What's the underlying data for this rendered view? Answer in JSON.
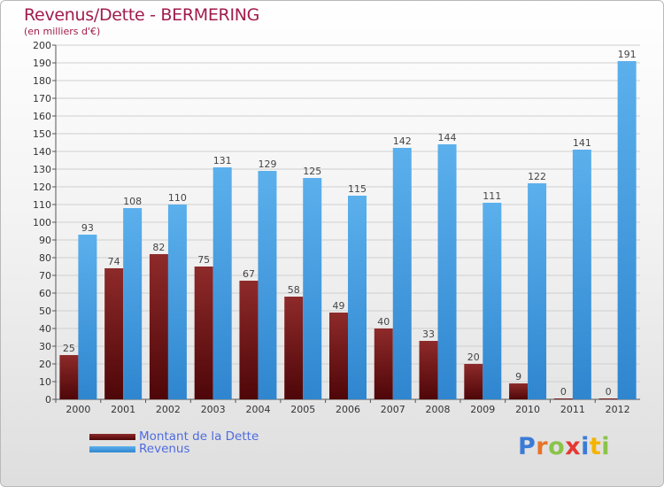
{
  "chart_data": {
    "type": "bar",
    "title": "Revenus/Dette - BERMERING",
    "subtitle": "(en milliers d'€)",
    "categories": [
      "2000",
      "2001",
      "2002",
      "2003",
      "2004",
      "2005",
      "2006",
      "2007",
      "2008",
      "2009",
      "2010",
      "2011",
      "2012"
    ],
    "series": [
      {
        "name": "Montant de la Dette",
        "color": "#7a1012",
        "values": [
          25,
          74,
          82,
          75,
          67,
          58,
          49,
          40,
          33,
          20,
          9,
          0,
          0
        ]
      },
      {
        "name": "Revenus",
        "color": "#4aa3e6",
        "values": [
          93,
          108,
          110,
          131,
          129,
          125,
          115,
          142,
          144,
          111,
          122,
          141,
          191
        ]
      }
    ],
    "ylim": [
      0,
      200
    ],
    "yticks": [
      0,
      10,
      20,
      30,
      40,
      50,
      60,
      70,
      80,
      90,
      100,
      110,
      120,
      130,
      140,
      150,
      160,
      170,
      180,
      190,
      200
    ],
    "grid": true,
    "legend_position": "bottom-left"
  },
  "logo": {
    "letters": [
      {
        "ch": "P",
        "color": "#3b7bd6"
      },
      {
        "ch": "r",
        "color": "#e8732a"
      },
      {
        "ch": "o",
        "color": "#8bc34a"
      },
      {
        "ch": "x",
        "color": "#e53935"
      },
      {
        "ch": "i",
        "color": "#3b7bd6"
      },
      {
        "ch": "t",
        "color": "#f4b400"
      },
      {
        "ch": "i",
        "color": "#8bc34a"
      }
    ]
  }
}
